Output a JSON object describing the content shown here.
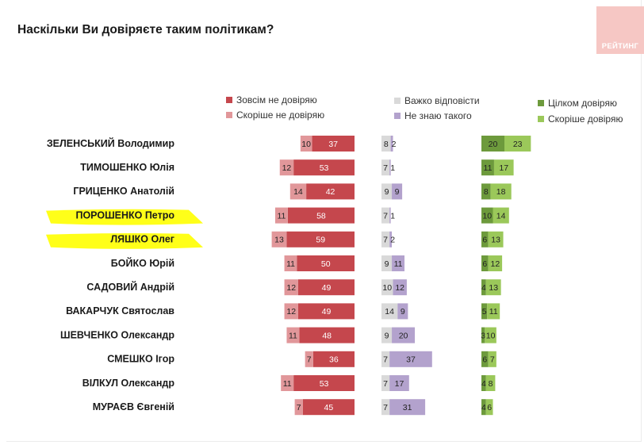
{
  "title": "Наскільки Ви довіряєте таким політикам?",
  "logo_text": "РЕЙТИНГ",
  "colors": {
    "not_trust_at_all": "#c5474d",
    "rather_not_trust": "#e1979a",
    "hard_to_say": "#d9d9d9",
    "dont_know": "#b3a2cd",
    "fully_trust": "#6d9a3c",
    "rather_trust": "#9bc85a",
    "highlight": "#ffff00"
  },
  "chart_data": {
    "type": "bar",
    "orientation": "horizontal",
    "stacking": "diverging",
    "title": "Наскільки Ви довіряєте таким політикам?",
    "categories": [
      "ЗЕЛЕНСЬКИЙ Володимир",
      "ТИМОШЕНКО Юлія",
      "ГРИЦЕНКО Анатолій",
      "ПОРОШЕНКО Петро",
      "ЛЯШКО Олег",
      "БОЙКО Юрій",
      "САДОВИЙ Андрій",
      "ВАКАРЧУК Святослав",
      "ШЕВЧЕНКО Олександр",
      "СМЕШКО Ігор",
      "ВІЛКУЛ Олександр",
      "МУРАЄВ Євгеній"
    ],
    "highlighted": [
      "ПОРОШЕНКО Петро",
      "ЛЯШКО Олег"
    ],
    "groups": [
      {
        "id": "distrust",
        "series": [
          {
            "name": "Зовсім не довіряю",
            "color_key": "not_trust_at_all",
            "values": [
              37,
              53,
              42,
              58,
              59,
              50,
              49,
              49,
              48,
              36,
              53,
              45
            ]
          },
          {
            "name": "Скоріше не довіряю",
            "color_key": "rather_not_trust",
            "values": [
              10,
              12,
              14,
              11,
              13,
              11,
              12,
              12,
              11,
              7,
              11,
              7
            ]
          }
        ]
      },
      {
        "id": "unsure",
        "series": [
          {
            "name": "Важко відповісти",
            "color_key": "hard_to_say",
            "values": [
              8,
              7,
              9,
              7,
              7,
              9,
              10,
              14,
              9,
              7,
              7,
              7
            ]
          },
          {
            "name": "Не знаю такого",
            "color_key": "dont_know",
            "values": [
              2,
              1,
              9,
              1,
              2,
              11,
              12,
              9,
              20,
              37,
              17,
              31
            ]
          }
        ]
      },
      {
        "id": "trust",
        "series": [
          {
            "name": "Цілком довіряю",
            "color_key": "fully_trust",
            "values": [
              20,
              11,
              8,
              10,
              6,
              6,
              4,
              5,
              3,
              6,
              4,
              4
            ]
          },
          {
            "name": "Скоріше довіряю",
            "color_key": "rather_trust",
            "values": [
              23,
              17,
              18,
              14,
              13,
              12,
              13,
              11,
              10,
              7,
              8,
              6
            ]
          }
        ]
      }
    ],
    "unit": "%"
  }
}
